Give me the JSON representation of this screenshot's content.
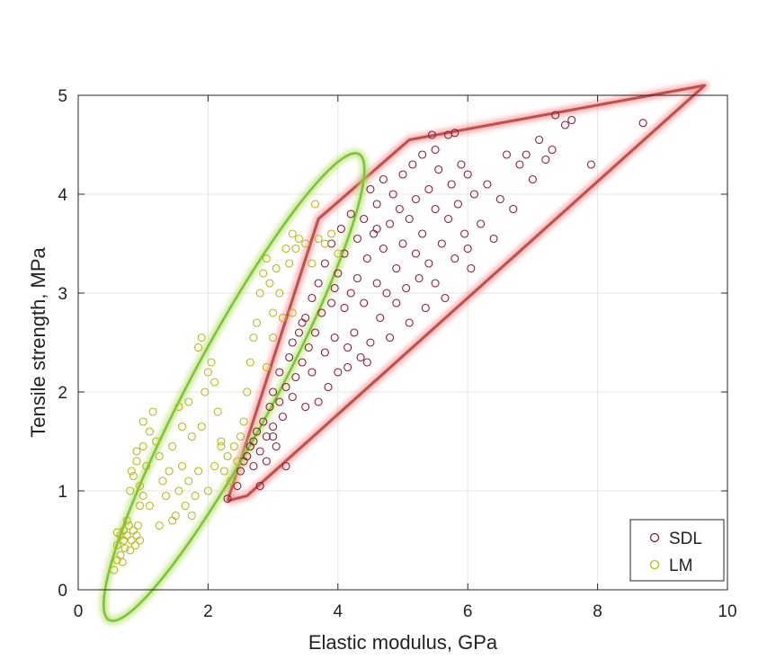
{
  "chart_data": {
    "type": "scatter",
    "title": "",
    "xlabel": "Elastic modulus, GPa",
    "ylabel": "Tensile strength, MPa",
    "xlim": [
      0,
      10
    ],
    "ylim": [
      0,
      5
    ],
    "xticks": [
      0,
      2,
      4,
      6,
      8,
      10
    ],
    "yticks": [
      0,
      1,
      2,
      3,
      4,
      5
    ],
    "grid": true,
    "legend_position": "bottom-right",
    "legend": [
      {
        "name": "SDL",
        "color": "#8B1A3A"
      },
      {
        "name": "LM",
        "color": "#B8B81A"
      }
    ],
    "series": [
      {
        "name": "SDL",
        "color": "#8B1A3A",
        "hull": [
          [
            2.3,
            0.9
          ],
          [
            3.7,
            3.75
          ],
          [
            5.1,
            4.55
          ],
          [
            9.65,
            5.1
          ],
          [
            2.6,
            0.95
          ],
          [
            2.3,
            0.9
          ]
        ],
        "points": [
          [
            2.3,
            0.92
          ],
          [
            2.45,
            1.05
          ],
          [
            2.5,
            1.2
          ],
          [
            2.55,
            1.3
          ],
          [
            2.6,
            1.35
          ],
          [
            2.65,
            1.45
          ],
          [
            2.7,
            1.5
          ],
          [
            2.7,
            1.25
          ],
          [
            2.75,
            1.6
          ],
          [
            2.8,
            1.4
          ],
          [
            2.85,
            1.7
          ],
          [
            2.9,
            1.55
          ],
          [
            2.9,
            1.3
          ],
          [
            2.95,
            1.85
          ],
          [
            3.0,
            1.65
          ],
          [
            3.0,
            2.0
          ],
          [
            3.05,
            1.45
          ],
          [
            3.1,
            1.9
          ],
          [
            3.1,
            2.2
          ],
          [
            3.15,
            1.75
          ],
          [
            3.2,
            1.25
          ],
          [
            3.2,
            2.05
          ],
          [
            3.25,
            2.35
          ],
          [
            3.3,
            1.95
          ],
          [
            3.3,
            2.5
          ],
          [
            3.35,
            2.15
          ],
          [
            3.4,
            2.6
          ],
          [
            3.45,
            2.3
          ],
          [
            3.5,
            1.85
          ],
          [
            3.5,
            2.75
          ],
          [
            3.55,
            2.45
          ],
          [
            3.6,
            2.95
          ],
          [
            3.6,
            2.2
          ],
          [
            3.65,
            2.6
          ],
          [
            3.7,
            3.1
          ],
          [
            3.7,
            1.9
          ],
          [
            3.75,
            2.8
          ],
          [
            3.8,
            2.4
          ],
          [
            3.8,
            3.3
          ],
          [
            3.85,
            2.05
          ],
          [
            3.9,
            2.9
          ],
          [
            3.9,
            3.5
          ],
          [
            3.95,
            2.55
          ],
          [
            4.0,
            3.2
          ],
          [
            4.0,
            2.2
          ],
          [
            4.05,
            3.65
          ],
          [
            4.1,
            2.85
          ],
          [
            4.1,
            3.4
          ],
          [
            4.15,
            2.45
          ],
          [
            4.2,
            3.0
          ],
          [
            4.2,
            3.8
          ],
          [
            4.25,
            2.6
          ],
          [
            4.3,
            3.55
          ],
          [
            4.3,
            3.15
          ],
          [
            4.35,
            2.35
          ],
          [
            4.4,
            3.75
          ],
          [
            4.4,
            2.9
          ],
          [
            4.45,
            3.35
          ],
          [
            4.5,
            4.05
          ],
          [
            4.5,
            2.5
          ],
          [
            4.55,
            3.6
          ],
          [
            4.6,
            3.1
          ],
          [
            4.6,
            3.9
          ],
          [
            4.65,
            2.75
          ],
          [
            4.7,
            4.15
          ],
          [
            4.7,
            3.45
          ],
          [
            4.75,
            3.0
          ],
          [
            4.8,
            3.7
          ],
          [
            4.8,
            2.55
          ],
          [
            4.85,
            4.0
          ],
          [
            4.9,
            3.25
          ],
          [
            4.9,
            2.9
          ],
          [
            4.95,
            3.85
          ],
          [
            5.0,
            4.2
          ],
          [
            5.0,
            3.5
          ],
          [
            5.05,
            3.05
          ],
          [
            5.1,
            3.75
          ],
          [
            5.1,
            2.7
          ],
          [
            5.15,
            4.3
          ],
          [
            5.2,
            3.4
          ],
          [
            5.2,
            3.95
          ],
          [
            5.25,
            3.15
          ],
          [
            5.3,
            4.4
          ],
          [
            5.3,
            3.6
          ],
          [
            5.35,
            2.85
          ],
          [
            5.4,
            4.05
          ],
          [
            5.4,
            3.3
          ],
          [
            5.45,
            4.6
          ],
          [
            5.5,
            3.85
          ],
          [
            5.5,
            3.1
          ],
          [
            5.55,
            4.25
          ],
          [
            5.6,
            3.5
          ],
          [
            5.65,
            2.95
          ],
          [
            5.7,
            4.6
          ],
          [
            5.7,
            3.75
          ],
          [
            5.75,
            4.1
          ],
          [
            5.8,
            3.35
          ],
          [
            5.85,
            3.9
          ],
          [
            5.9,
            4.3
          ],
          [
            5.95,
            3.6
          ],
          [
            6.0,
            4.2
          ],
          [
            6.0,
            3.45
          ],
          [
            6.05,
            3.25
          ],
          [
            6.1,
            4.0
          ],
          [
            6.2,
            3.7
          ],
          [
            6.3,
            4.1
          ],
          [
            6.4,
            3.55
          ],
          [
            6.5,
            3.95
          ],
          [
            6.6,
            4.4
          ],
          [
            6.7,
            3.85
          ],
          [
            6.8,
            4.3
          ],
          [
            6.9,
            4.4
          ],
          [
            7.0,
            4.15
          ],
          [
            7.1,
            4.55
          ],
          [
            7.2,
            4.35
          ],
          [
            7.3,
            4.45
          ],
          [
            7.35,
            4.8
          ],
          [
            7.5,
            4.7
          ],
          [
            7.6,
            4.75
          ],
          [
            7.9,
            4.3
          ],
          [
            8.7,
            4.72
          ],
          [
            5.5,
            4.45
          ],
          [
            5.8,
            4.62
          ],
          [
            4.6,
            3.65
          ],
          [
            3.95,
            3.05
          ],
          [
            4.15,
            2.25
          ],
          [
            3.45,
            2.7
          ],
          [
            3.0,
            1.55
          ],
          [
            2.8,
            1.05
          ],
          [
            4.45,
            2.3
          ]
        ]
      },
      {
        "name": "LM",
        "color": "#B8B81A",
        "ellipse": {
          "cx": 2.4,
          "cy": 2.05,
          "rx": 3.05,
          "ry": 0.57,
          "angle_deg": 50
        },
        "points": [
          [
            0.55,
            0.2
          ],
          [
            0.6,
            0.3
          ],
          [
            0.6,
            0.45
          ],
          [
            0.65,
            0.55
          ],
          [
            0.65,
            0.35
          ],
          [
            0.7,
            0.5
          ],
          [
            0.7,
            0.6
          ],
          [
            0.72,
            0.42
          ],
          [
            0.75,
            0.55
          ],
          [
            0.78,
            0.65
          ],
          [
            0.8,
            0.4
          ],
          [
            0.82,
            0.5
          ],
          [
            0.85,
            0.6
          ],
          [
            0.88,
            0.45
          ],
          [
            0.9,
            0.55
          ],
          [
            0.92,
            0.65
          ],
          [
            0.95,
            0.5
          ],
          [
            0.6,
            0.58
          ],
          [
            0.68,
            0.28
          ],
          [
            0.75,
            0.7
          ],
          [
            0.8,
            1.0
          ],
          [
            0.85,
            1.15
          ],
          [
            0.9,
            1.3
          ],
          [
            0.95,
            1.05
          ],
          [
            1.0,
            1.45
          ],
          [
            1.05,
            1.25
          ],
          [
            1.1,
            1.6
          ],
          [
            1.15,
            1.8
          ],
          [
            1.0,
            1.7
          ],
          [
            0.9,
            1.4
          ],
          [
            0.82,
            1.2
          ],
          [
            1.2,
            1.5
          ],
          [
            1.25,
            1.35
          ],
          [
            1.3,
            1.1
          ],
          [
            1.35,
            0.95
          ],
          [
            1.4,
            1.2
          ],
          [
            1.45,
            1.45
          ],
          [
            1.5,
            0.75
          ],
          [
            1.55,
            1.0
          ],
          [
            1.6,
            1.25
          ],
          [
            1.65,
            0.85
          ],
          [
            1.7,
            1.1
          ],
          [
            1.75,
            1.55
          ],
          [
            1.8,
            0.95
          ],
          [
            1.85,
            1.2
          ],
          [
            1.9,
            1.65
          ],
          [
            1.95,
            2.0
          ],
          [
            2.0,
            2.2
          ],
          [
            1.85,
            2.45
          ],
          [
            1.9,
            2.55
          ],
          [
            2.05,
            2.3
          ],
          [
            2.1,
            2.1
          ],
          [
            2.15,
            1.8
          ],
          [
            2.2,
            1.5
          ],
          [
            2.25,
            1.2
          ],
          [
            2.3,
            1.35
          ],
          [
            2.35,
            1.1
          ],
          [
            2.4,
            1.45
          ],
          [
            2.45,
            1.3
          ],
          [
            2.5,
            1.55
          ],
          [
            2.55,
            1.7
          ],
          [
            2.6,
            2.0
          ],
          [
            2.65,
            2.3
          ],
          [
            2.7,
            2.55
          ],
          [
            2.75,
            2.7
          ],
          [
            2.8,
            3.0
          ],
          [
            2.85,
            3.2
          ],
          [
            2.9,
            3.35
          ],
          [
            2.95,
            3.1
          ],
          [
            3.0,
            2.8
          ],
          [
            3.05,
            3.25
          ],
          [
            3.1,
            3.0
          ],
          [
            3.15,
            2.75
          ],
          [
            3.2,
            3.45
          ],
          [
            3.25,
            3.3
          ],
          [
            3.3,
            3.6
          ],
          [
            3.35,
            3.45
          ],
          [
            3.4,
            3.55
          ],
          [
            3.5,
            3.5
          ],
          [
            3.6,
            3.3
          ],
          [
            3.7,
            3.55
          ],
          [
            3.8,
            3.5
          ],
          [
            3.9,
            3.6
          ],
          [
            4.0,
            3.4
          ],
          [
            3.65,
            3.9
          ],
          [
            1.55,
            1.85
          ],
          [
            1.6,
            1.65
          ],
          [
            1.7,
            1.9
          ],
          [
            1.25,
            0.65
          ],
          [
            1.1,
            0.85
          ],
          [
            1.0,
            0.95
          ],
          [
            0.95,
            0.85
          ],
          [
            2.0,
            1.0
          ],
          [
            2.1,
            1.25
          ],
          [
            2.2,
            1.45
          ],
          [
            1.75,
            0.75
          ],
          [
            1.45,
            0.7
          ],
          [
            3.3,
            2.8
          ],
          [
            3.0,
            2.55
          ],
          [
            2.9,
            2.25
          ]
        ]
      }
    ]
  }
}
